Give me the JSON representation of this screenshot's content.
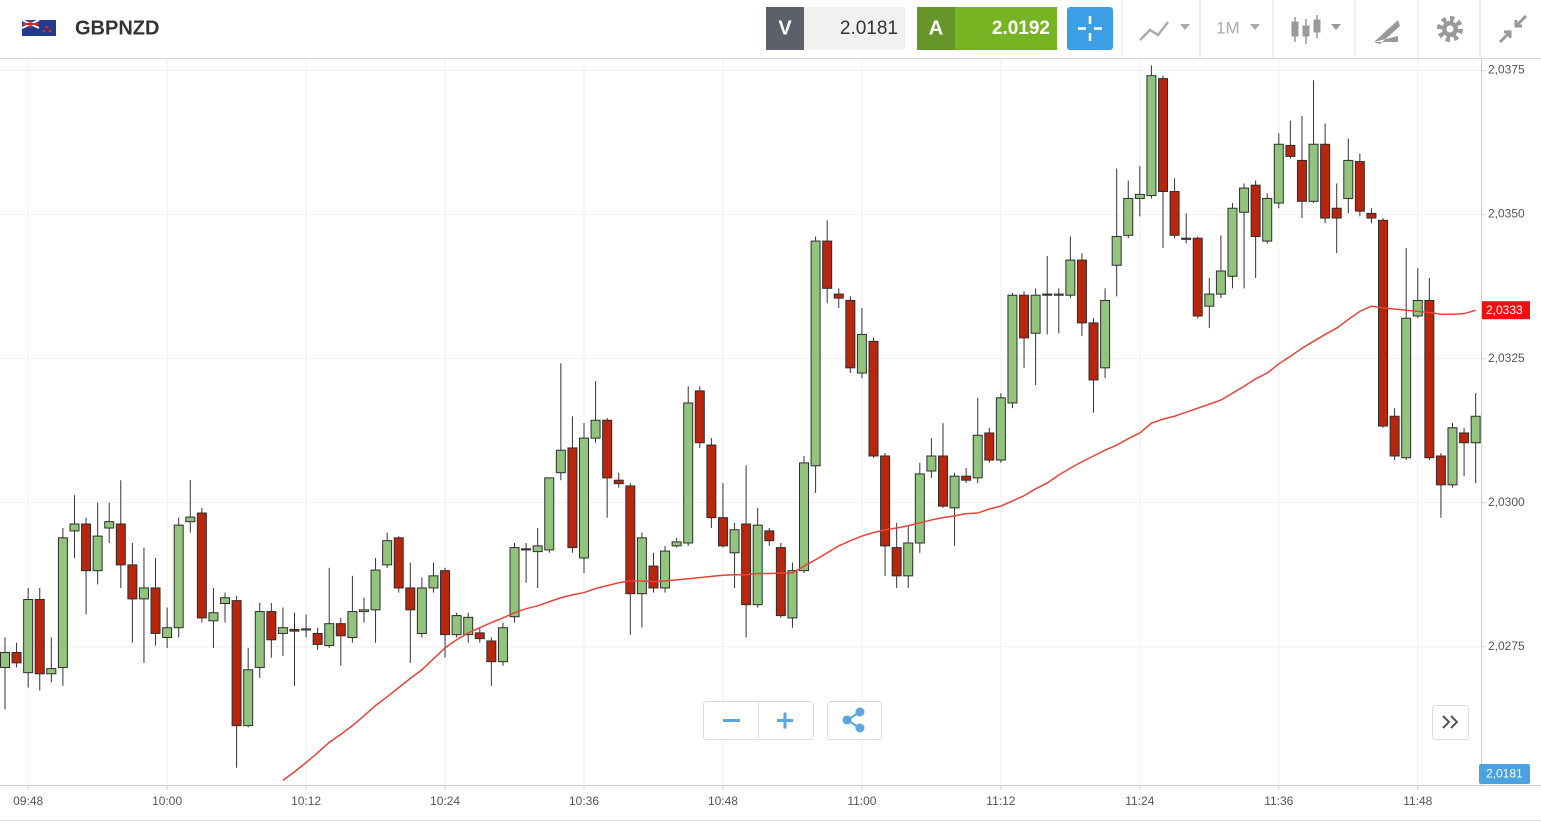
{
  "header": {
    "symbol": "GBPNZD",
    "bid_letter": "V",
    "bid": "2.0181",
    "ask_letter": "A",
    "ask": "2.0192",
    "timeframe": "1M"
  },
  "chart_data": {
    "type": "candlestick",
    "categories": [
      null,
      null,
      "09:48",
      null,
      null,
      null,
      null,
      null,
      null,
      null,
      null,
      null,
      null,
      null,
      "10:00",
      null,
      null,
      null,
      null,
      null,
      null,
      null,
      null,
      null,
      null,
      null,
      "10:12",
      null,
      null,
      null,
      null,
      null,
      null,
      null,
      null,
      null,
      null,
      null,
      "10:24",
      null,
      null,
      null,
      null,
      null,
      null,
      null,
      null,
      null,
      null,
      null,
      "10:36",
      null,
      null,
      null,
      null,
      null,
      null,
      null,
      null,
      null,
      null,
      null,
      "10:48",
      null,
      null,
      null,
      null,
      null,
      null,
      null,
      null,
      null,
      null,
      null,
      "11:00",
      null,
      null,
      null,
      null,
      null,
      null,
      null,
      null,
      null,
      null,
      null,
      "11:12",
      null,
      null,
      null,
      null,
      null,
      null,
      null,
      null,
      null,
      null,
      null,
      "11:24",
      null,
      null,
      null,
      null,
      null,
      null,
      null,
      null,
      null,
      null,
      null,
      "11:36",
      null,
      null,
      null,
      null,
      null,
      null,
      null,
      null,
      null,
      null,
      null,
      "11:48",
      null,
      null,
      null,
      null,
      null
    ],
    "open": [
      2.02714,
      2.0274,
      2.02705,
      2.02832,
      2.02703,
      2.02714,
      2.02951,
      2.02963,
      2.02882,
      2.02956,
      2.02963,
      2.02892,
      2.02833,
      2.02852,
      2.02766,
      2.02783,
      2.02967,
      2.02982,
      2.02795,
      2.02825,
      2.0283,
      2.02613,
      2.02714,
      2.02811,
      2.02773,
      2.0278,
      2.02779,
      2.02773,
      2.02752,
      2.0279,
      2.02766,
      2.02811,
      2.02814,
      2.02892,
      2.02939,
      2.02852,
      2.02773,
      2.02852,
      2.02882,
      2.02771,
      2.02771,
      2.02774,
      2.0276,
      2.02724,
      2.02802,
      2.0292,
      2.02915,
      2.02918,
      2.03052,
      2.03095,
      2.02904,
      2.03112,
      2.03143,
      2.03039,
      2.03029,
      2.02842,
      2.0289,
      2.02852,
      2.02925,
      2.0293,
      2.03194,
      2.031,
      2.02974,
      2.02913,
      2.02963,
      2.02823,
      2.02951,
      2.02922,
      2.028,
      2.02882,
      2.03064,
      2.03454,
      2.03362,
      2.03351,
      2.03225,
      2.0328,
      2.03081,
      2.02922,
      2.02873,
      2.0293,
      2.03055,
      2.03081,
      2.02991,
      2.03046,
      2.03043,
      2.03121,
      2.03074,
      2.03173,
      2.0336,
      2.03294,
      2.03362,
      2.0336,
      2.0336,
      2.03421,
      2.03312,
      2.03234,
      2.03412,
      2.03464,
      2.03528,
      2.03533,
      2.03736,
      2.0354,
      2.03459,
      2.03459,
      2.03341,
      2.03362,
      2.03393,
      2.03504,
      2.03551,
      2.03454,
      2.0352,
      2.0362,
      2.03594,
      2.03523,
      2.03622,
      2.03511,
      2.03528,
      2.03592,
      2.03502,
      2.0349,
      2.0315,
      2.03078,
      2.03324,
      2.03351,
      2.03081,
      2.03031,
      2.03121,
      2.03104
    ],
    "high": [
      2.02766,
      2.02757,
      2.02852,
      2.02852,
      2.02766,
      2.02956,
      2.03013,
      2.02974,
      2.03,
      2.03,
      2.03039,
      2.0293,
      2.02922,
      2.02904,
      2.02818,
      2.02974,
      2.03039,
      2.02991,
      2.02852,
      2.02844,
      2.02838,
      2.02748,
      2.02826,
      2.02826,
      2.02818,
      2.02809,
      2.02806,
      2.02783,
      2.02887,
      2.028,
      2.02873,
      2.02835,
      2.02904,
      2.02948,
      2.02942,
      2.02896,
      2.0287,
      2.02896,
      2.02887,
      2.02809,
      2.02809,
      2.02783,
      2.02766,
      2.02792,
      2.0293,
      2.0293,
      2.02956,
      2.03043,
      2.03242,
      2.0315,
      2.03138,
      2.03211,
      2.03147,
      2.03052,
      2.03034,
      2.02948,
      2.02913,
      2.02925,
      2.02939,
      2.03202,
      2.03202,
      2.03112,
      2.03034,
      2.02965,
      2.03065,
      2.02991,
      2.02956,
      2.0293,
      2.02896,
      2.03081,
      2.03462,
      2.0349,
      2.03372,
      2.03358,
      2.03338,
      2.03286,
      2.03086,
      2.02965,
      2.0296,
      2.03069,
      2.03112,
      2.03138,
      2.03052,
      2.0306,
      2.03182,
      2.0313,
      2.0319,
      2.03364,
      2.03367,
      2.03372,
      2.03428,
      2.03372,
      2.03462,
      2.03433,
      2.0332,
      2.03372,
      2.0358,
      2.03559,
      2.03584,
      2.03759,
      2.03741,
      2.03563,
      2.03502,
      2.03462,
      2.0339,
      2.03464,
      2.0352,
      2.03554,
      2.03559,
      2.03537,
      2.03641,
      2.03663,
      2.03671,
      2.03733,
      2.03658,
      2.03554,
      2.03632,
      2.03606,
      2.03511,
      2.03494,
      2.03164,
      2.03442,
      2.03407,
      2.0339,
      2.03086,
      2.03138,
      2.0313,
      2.0319
    ],
    "low": [
      2.02641,
      2.02714,
      2.02679,
      2.02674,
      2.02688,
      2.02682,
      2.02904,
      2.02806,
      2.02858,
      2.0293,
      2.02852,
      2.02757,
      2.02722,
      2.02752,
      2.02748,
      2.02766,
      2.02948,
      2.02792,
      2.02748,
      2.02792,
      2.0254,
      2.0261,
      2.02696,
      2.02731,
      2.02734,
      2.02682,
      2.02766,
      2.02745,
      2.02748,
      2.02717,
      2.02757,
      2.02792,
      2.02757,
      2.02887,
      2.02844,
      2.02722,
      2.02766,
      2.02844,
      2.02731,
      2.02766,
      2.02757,
      2.02757,
      2.02682,
      2.02717,
      2.02792,
      2.02861,
      2.02852,
      2.02913,
      2.03039,
      2.02913,
      2.02878,
      2.03104,
      2.02974,
      2.03026,
      2.02771,
      2.02783,
      2.02844,
      2.02844,
      2.02922,
      2.02925,
      2.03095,
      2.02956,
      2.02922,
      2.02852,
      2.02766,
      2.02818,
      2.02925,
      2.028,
      2.02783,
      2.02878,
      2.03017,
      2.03346,
      2.03338,
      2.03225,
      2.03216,
      2.03078,
      2.02873,
      2.02852,
      2.02852,
      2.02913,
      2.03043,
      2.02991,
      2.02925,
      2.03034,
      2.03034,
      2.03069,
      2.03069,
      2.03164,
      2.03234,
      2.03204,
      2.03292,
      2.03294,
      2.03355,
      2.03289,
      2.03156,
      2.03216,
      2.03358,
      2.03459,
      2.03497,
      2.03528,
      2.03442,
      2.03459,
      2.0345,
      2.0332,
      2.03303,
      2.03355,
      2.03372,
      2.03372,
      2.0339,
      2.0345,
      2.03511,
      2.03597,
      2.03494,
      2.0352,
      2.03485,
      2.03433,
      2.03502,
      2.03497,
      2.03485,
      2.0313,
      2.03074,
      2.03074,
      2.0332,
      2.03074,
      2.02974,
      2.03026,
      2.03046,
      2.03034
    ],
    "close": [
      2.0274,
      2.02722,
      2.02832,
      2.02703,
      2.02712,
      2.02939,
      2.02963,
      2.02882,
      2.02942,
      2.02967,
      2.02892,
      2.02833,
      2.02852,
      2.02773,
      2.02783,
      2.02961,
      2.02975,
      2.028,
      2.02809,
      2.02835,
      2.02613,
      2.0271,
      2.02811,
      2.02762,
      2.02783,
      2.02777,
      2.02781,
      2.02754,
      2.0279,
      2.02769,
      2.02811,
      2.02814,
      2.02883,
      2.02934,
      2.02852,
      2.02814,
      2.02852,
      2.02873,
      2.02771,
      2.02804,
      2.02801,
      2.02764,
      2.02724,
      2.02783,
      2.02922,
      2.02918,
      2.02925,
      2.03043,
      2.03091,
      2.02922,
      2.03112,
      2.03143,
      2.03043,
      2.03033,
      2.02842,
      2.02939,
      2.02852,
      2.02916,
      2.02932,
      2.03173,
      2.03104,
      2.02974,
      2.02925,
      2.02953,
      2.02823,
      2.02961,
      2.02934,
      2.02804,
      2.02882,
      2.03069,
      2.03454,
      2.03372,
      2.03355,
      2.03234,
      2.03292,
      2.03081,
      2.02925,
      2.02873,
      2.0293,
      2.0305,
      2.03081,
      2.02994,
      2.03046,
      2.03039,
      2.03117,
      2.03074,
      2.03182,
      2.0336,
      2.03286,
      2.0336,
      2.0336,
      2.03362,
      2.03421,
      2.03312,
      2.03213,
      2.03351,
      2.03462,
      2.03528,
      2.03535,
      2.03741,
      2.0354,
      2.03464,
      2.03457,
      2.03324,
      2.03362,
      2.03402,
      2.03511,
      2.03546,
      2.03462,
      2.03528,
      2.03622,
      2.03601,
      2.03523,
      2.03622,
      2.03494,
      2.03494,
      2.03594,
      2.03506,
      2.03494,
      2.03133,
      2.03081,
      2.0332,
      2.03351,
      2.03078,
      2.03031,
      2.0313,
      2.03104,
      2.0315
    ],
    "up_color": "#92c47d",
    "down_color": "#b8260e",
    "line": {
      "color": "#e8433a",
      "value_label": "2,0333",
      "values": [
        null,
        null,
        null,
        null,
        null,
        null,
        null,
        null,
        null,
        null,
        null,
        null,
        null,
        null,
        null,
        null,
        null,
        null,
        null,
        null,
        null,
        null,
        null,
        null,
        2.02518,
        2.02533,
        2.02549,
        2.02566,
        2.02584,
        2.02598,
        2.02613,
        2.0263,
        2.02648,
        2.02663,
        2.02679,
        2.02695,
        2.0271,
        2.02729,
        2.02748,
        2.02762,
        2.02774,
        2.02783,
        2.02792,
        2.028,
        2.02809,
        2.02816,
        2.02821,
        2.02828,
        2.02835,
        2.0284,
        2.02844,
        2.02851,
        2.02856,
        2.02861,
        2.02864,
        2.02864,
        2.02863,
        2.02864,
        2.02866,
        2.02868,
        2.0287,
        2.02872,
        2.02874,
        2.02875,
        2.02875,
        2.02877,
        2.02877,
        2.02878,
        2.02878,
        2.0289,
        2.02901,
        2.02913,
        2.02925,
        2.02934,
        2.02942,
        2.02948,
        2.02953,
        2.02956,
        2.0296,
        2.02965,
        2.0297,
        2.02974,
        2.02977,
        2.02981,
        2.02982,
        2.02989,
        2.02994,
        2.03003,
        2.03012,
        2.03024,
        2.03034,
        2.03048,
        2.0306,
        2.03071,
        2.03081,
        2.03091,
        2.031,
        2.03111,
        2.03121,
        2.03138,
        2.03145,
        2.0315,
        2.03157,
        2.03164,
        2.03171,
        2.03178,
        2.0319,
        2.03202,
        2.03215,
        2.03225,
        2.03241,
        2.03254,
        2.03268,
        2.0328,
        2.03292,
        2.03303,
        2.03318,
        2.03332,
        2.03341,
        2.03338,
        2.03336,
        2.03334,
        2.03332,
        2.0333,
        2.03327,
        2.03327,
        2.03328,
        2.03334
      ]
    },
    "current_price_label": "2,0181",
    "ylim": [
      2.0251,
      2.0377
    ],
    "yticks": [
      {
        "value": 2.0275,
        "label": "2,0275"
      },
      {
        "value": 2.03,
        "label": "2,0300"
      },
      {
        "value": 2.0325,
        "label": "2,0325"
      },
      {
        "value": 2.035,
        "label": "2,0350"
      },
      {
        "value": 2.0375,
        "label": "2,0375"
      }
    ],
    "grid": true
  }
}
